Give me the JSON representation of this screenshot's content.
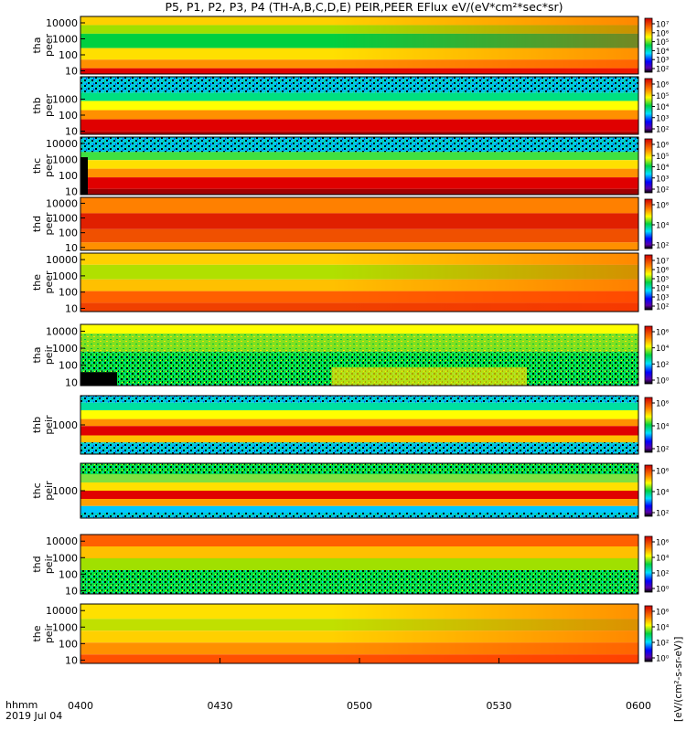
{
  "title": "P5, P1, P2, P3, P4 (TH-A,B,C,D,E) PEIR,PEER EFlux eV/(eV*cm²*sec*sr)",
  "chart_data": {
    "type": "heatmap",
    "x_axis": {
      "ticks": [
        "0400",
        "0430",
        "0500",
        "0530",
        "0600"
      ],
      "label_line1": "hhmm",
      "label_line2": "2019 Jul 04"
    },
    "colorbar_label": "[eV/(cm²-s-sr-eV)]",
    "panels": [
      {
        "probe": "tha",
        "species": "peer",
        "yticks": [
          "10",
          "100",
          "1000",
          "10000"
        ],
        "cbticks": [
          "10²",
          "10³",
          "10⁴",
          "10⁵",
          "10⁶",
          "10⁷"
        ]
      },
      {
        "probe": "thb",
        "species": "peer",
        "yticks": [
          "10",
          "100",
          "1000"
        ],
        "cbticks": [
          "10²",
          "10³",
          "10⁴",
          "10⁵",
          "10⁶"
        ]
      },
      {
        "probe": "thc",
        "species": "peer",
        "yticks": [
          "10",
          "100",
          "1000",
          "10000"
        ],
        "cbticks": [
          "10²",
          "10³",
          "10⁴",
          "10⁵",
          "10⁶"
        ]
      },
      {
        "probe": "thd",
        "species": "peer",
        "yticks": [
          "10",
          "100",
          "1000",
          "10000"
        ],
        "cbticks": [
          "10²",
          "10⁴",
          "10⁶"
        ]
      },
      {
        "probe": "the",
        "species": "peer",
        "yticks": [
          "10",
          "100",
          "1000",
          "10000"
        ],
        "cbticks": [
          "10²",
          "10³",
          "10⁴",
          "10⁵",
          "10⁶",
          "10⁷"
        ]
      },
      {
        "probe": "tha",
        "species": "peir",
        "yticks": [
          "10",
          "100",
          "1000",
          "10000"
        ],
        "cbticks": [
          "10⁰",
          "10²",
          "10⁴",
          "10⁶"
        ]
      },
      {
        "probe": "thb",
        "species": "peir",
        "yticks": [
          "1000"
        ],
        "cbticks": [
          "10²",
          "10⁴",
          "10⁶"
        ]
      },
      {
        "probe": "thc",
        "species": "peir",
        "yticks": [
          "1000"
        ],
        "cbticks": [
          "10²",
          "10⁴",
          "10⁶"
        ]
      },
      {
        "probe": "thd",
        "species": "peir",
        "yticks": [
          "10",
          "100",
          "1000",
          "10000"
        ],
        "cbticks": [
          "10⁰",
          "10²",
          "10⁴",
          "10⁶"
        ]
      },
      {
        "probe": "the",
        "species": "peir",
        "yticks": [
          "10",
          "100",
          "1000",
          "10000"
        ],
        "cbticks": [
          "10⁰",
          "10²",
          "10⁴",
          "10⁶"
        ]
      }
    ]
  }
}
